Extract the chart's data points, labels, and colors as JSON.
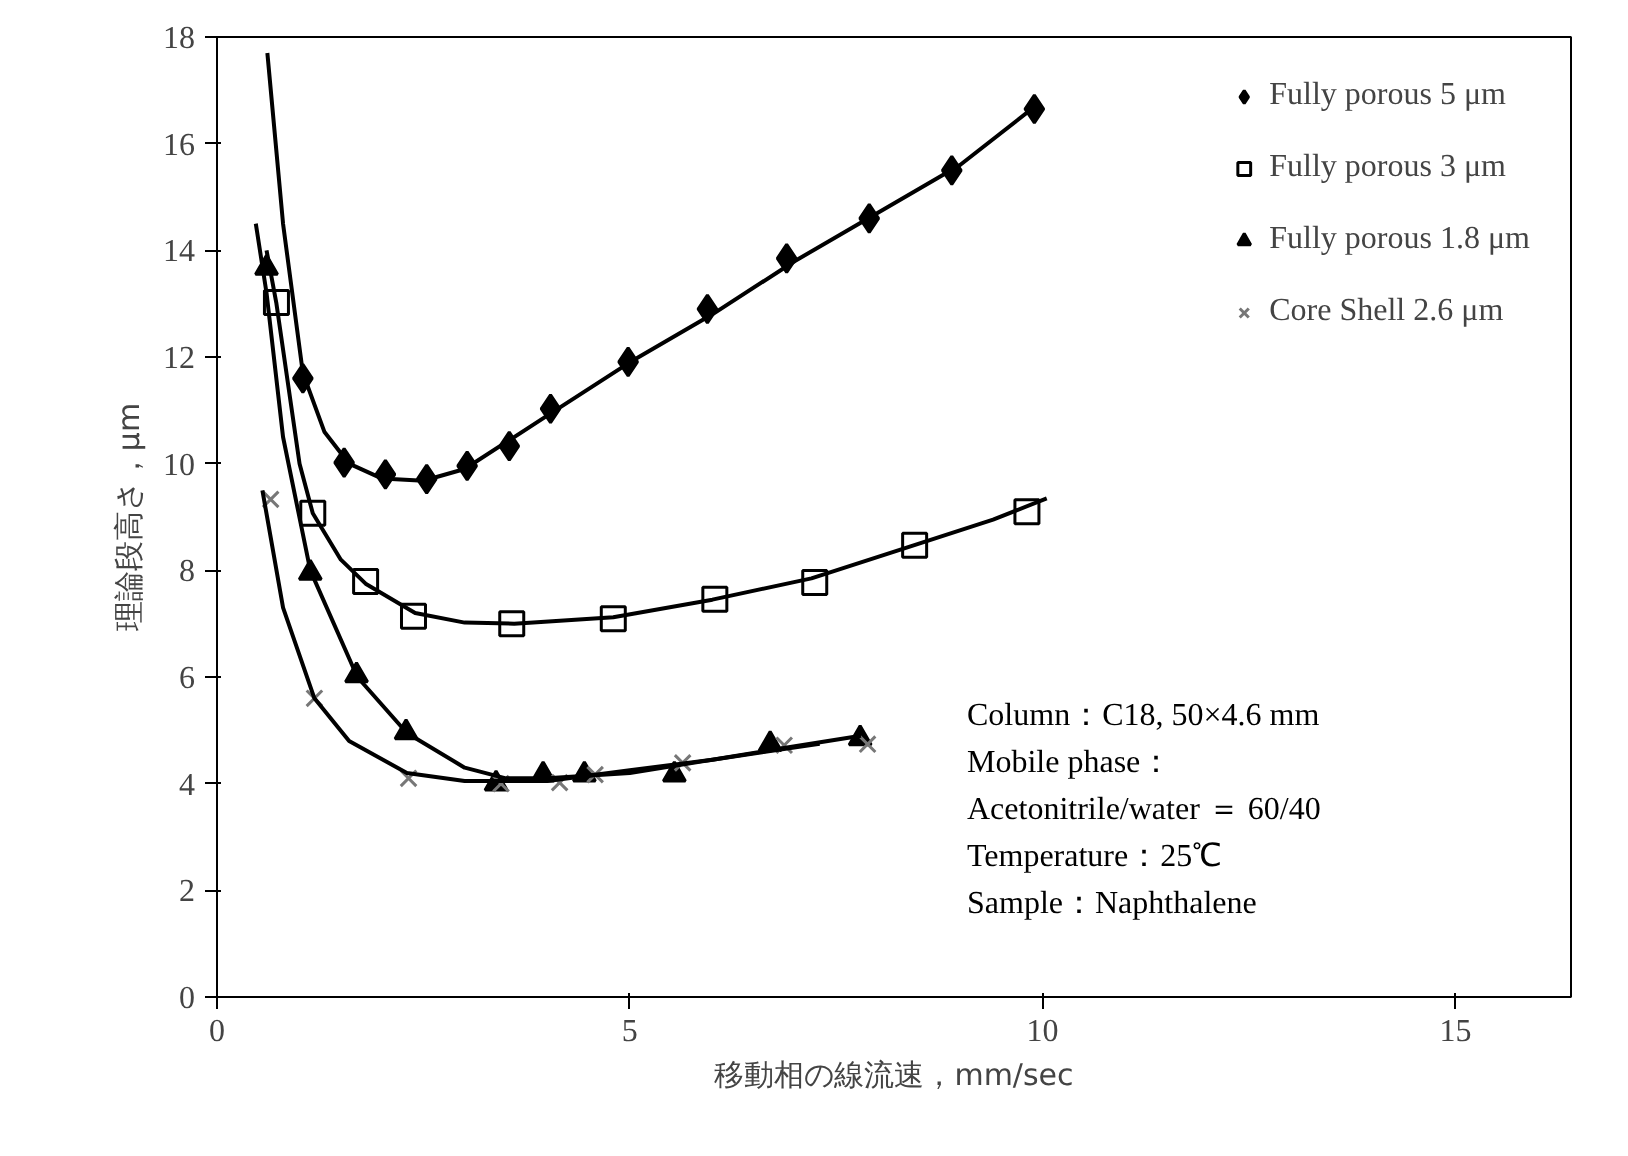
{
  "chart_data": {
    "type": "scatter",
    "xlabel": "移動相の線流速，mm/sec",
    "ylabel": "理論段高さ，μm",
    "xlim": [
      0,
      16.4
    ],
    "ylim": [
      0,
      18
    ],
    "xticks": [
      0,
      5,
      10,
      15
    ],
    "yticks": [
      0,
      2,
      4,
      6,
      8,
      10,
      12,
      14,
      16,
      18
    ],
    "grid": false,
    "legend": "top right",
    "series": [
      {
        "name": "Fully porous 5 μm",
        "marker": "diamond",
        "color": "#000000",
        "x": [
          1.04,
          1.54,
          2.04,
          2.54,
          3.03,
          3.54,
          4.04,
          4.98,
          5.94,
          6.9,
          7.9,
          8.9,
          9.9
        ],
        "values": [
          11.6,
          10.02,
          9.8,
          9.71,
          9.96,
          10.33,
          11.03,
          11.91,
          12.9,
          13.85,
          14.6,
          15.5,
          16.65
        ]
      },
      {
        "name": "Fully porous 3 μm",
        "marker": "square",
        "color": "#000000",
        "x": [
          0.72,
          1.16,
          1.8,
          2.38,
          3.57,
          4.8,
          6.03,
          7.24,
          8.45,
          9.81
        ],
        "values": [
          13.02,
          9.07,
          7.79,
          7.14,
          7.0,
          7.09,
          7.46,
          7.77,
          8.47,
          9.1
        ]
      },
      {
        "name": "Fully porous 1.8 μm",
        "marker": "triangle",
        "color": "#000000",
        "x": [
          0.6,
          1.13,
          1.69,
          2.29,
          3.38,
          3.95,
          4.45,
          5.54,
          6.7,
          7.79
        ],
        "values": [
          13.67,
          7.95,
          6.03,
          4.96,
          4.0,
          4.17,
          4.17,
          4.17,
          4.74,
          4.85
        ]
      },
      {
        "name": "Core Shell 2.6 μm",
        "marker": "cross",
        "color": "#777777",
        "x": [
          0.65,
          1.18,
          2.32,
          3.44,
          4.15,
          4.58,
          5.64,
          6.87,
          7.88
        ],
        "values": [
          9.33,
          5.6,
          4.1,
          4.0,
          4.02,
          4.17,
          4.39,
          4.72,
          4.74
        ]
      },
      {
        "type": "line",
        "color": "#000000",
        "x": [
          0.61,
          0.8,
          1.04,
          1.3,
          1.6,
          2.0,
          2.5,
          3.0,
          4.0,
          5.0,
          6.0,
          7.0,
          8.0,
          9.0,
          9.95
        ],
        "values": [
          17.7,
          14.5,
          11.7,
          10.6,
          10.0,
          9.72,
          9.68,
          9.9,
          10.9,
          11.9,
          12.8,
          13.8,
          14.7,
          15.6,
          16.75
        ]
      },
      {
        "type": "line",
        "color": "#000000",
        "x": [
          0.6,
          0.72,
          1.0,
          1.16,
          1.5,
          1.8,
          2.4,
          3.0,
          3.6,
          4.8,
          6.0,
          7.2,
          8.4,
          9.4,
          10.05
        ],
        "values": [
          14.0,
          13.0,
          10.0,
          9.07,
          8.2,
          7.75,
          7.2,
          7.02,
          7.0,
          7.12,
          7.45,
          7.85,
          8.45,
          8.95,
          9.35
        ]
      },
      {
        "type": "line",
        "color": "#000000",
        "x": [
          0.47,
          0.6,
          0.8,
          1.13,
          1.7,
          2.3,
          3.0,
          3.5,
          4.0,
          5.0,
          6.0,
          7.0,
          7.8
        ],
        "values": [
          14.5,
          13.2,
          10.5,
          8.0,
          6.0,
          4.95,
          4.3,
          4.1,
          4.1,
          4.2,
          4.45,
          4.7,
          4.9
        ]
      },
      {
        "type": "line",
        "color": "#000000",
        "x": [
          0.55,
          0.8,
          1.18,
          1.6,
          2.3,
          3.0,
          4.0,
          5.0,
          6.0,
          7.3
        ],
        "values": [
          9.5,
          7.3,
          5.6,
          4.8,
          4.2,
          4.05,
          4.05,
          4.25,
          4.45,
          4.75
        ]
      }
    ],
    "annotations": [
      "Column：C18, 50×4.6 mm",
      "Mobile phase：",
      "Acetonitrile/water ＝ 60/40",
      "Temperature：25℃",
      "Sample：Naphthalene"
    ]
  }
}
